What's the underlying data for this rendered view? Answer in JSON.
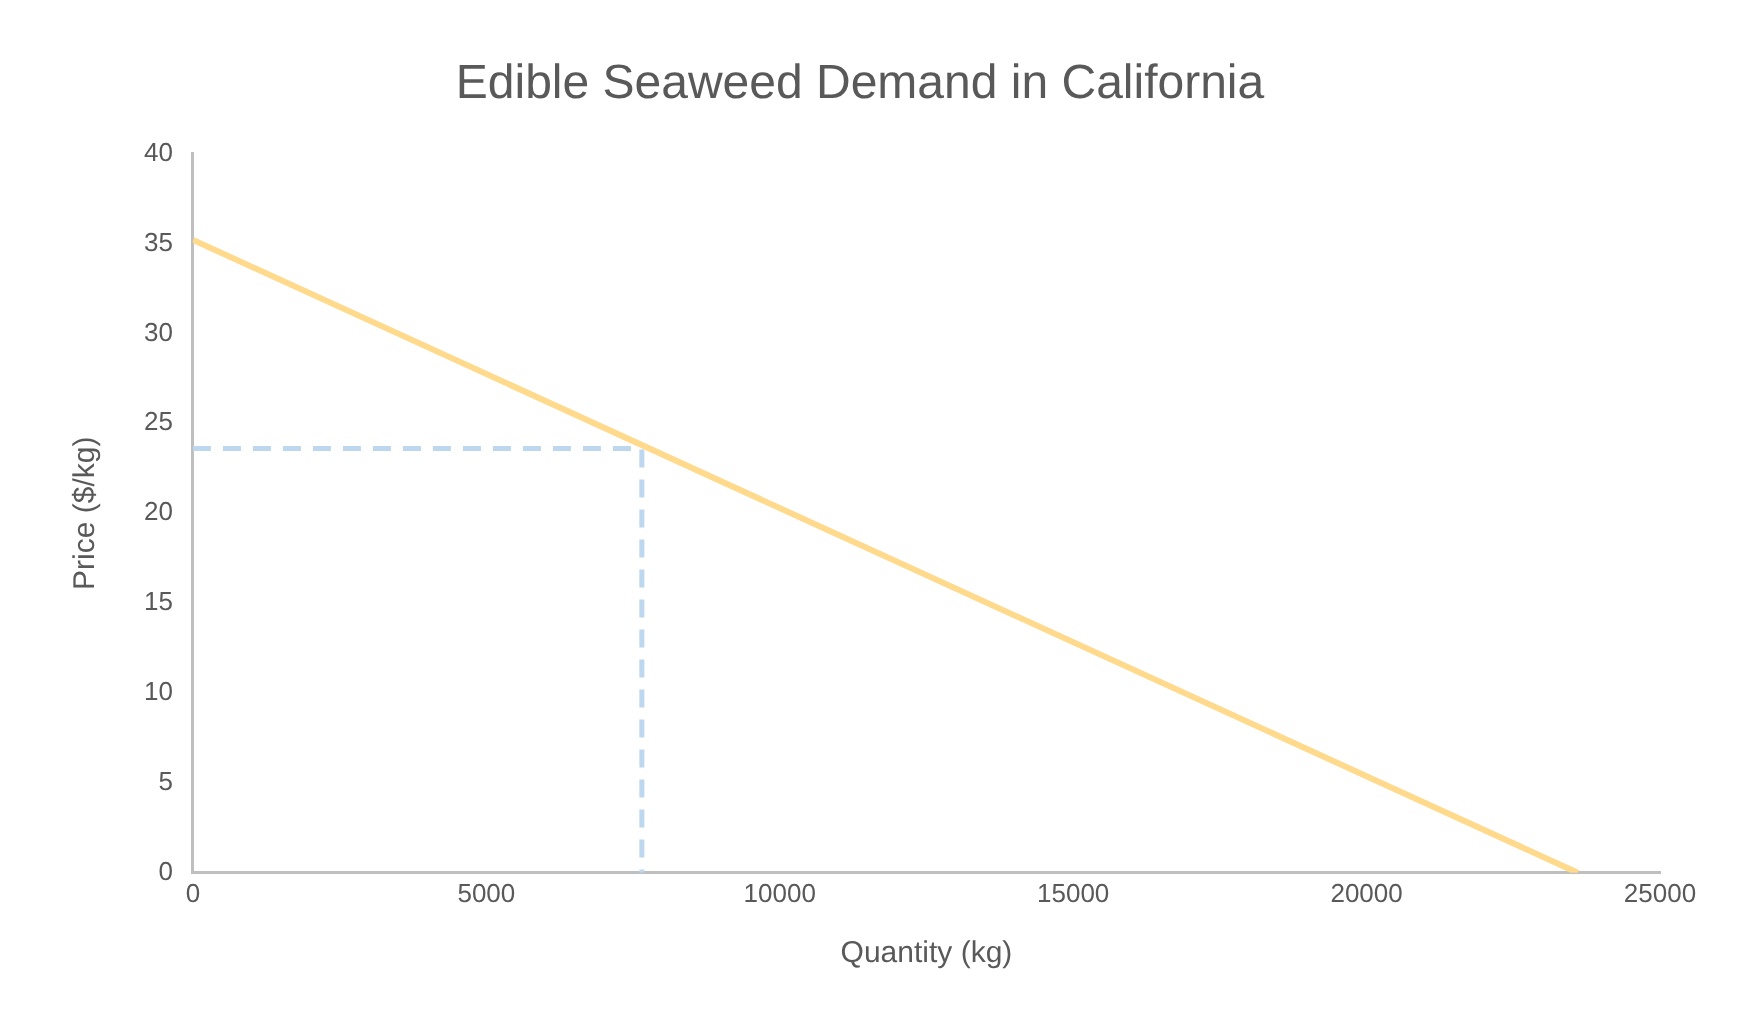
{
  "chart_data": {
    "type": "line",
    "title": "Edible Seaweed Demand in California",
    "xlabel": "Quantity (kg)",
    "ylabel": "Price ($/kg)",
    "xlim": [
      0,
      25000
    ],
    "xticks": [
      0,
      5000,
      10000,
      15000,
      20000,
      25000
    ],
    "ylim": [
      0,
      40
    ],
    "yticks": [
      0,
      5,
      10,
      15,
      20,
      25,
      30,
      35,
      40
    ],
    "grid": false,
    "legend": false,
    "marker": "none",
    "series": [
      {
        "color": "#ffd98c",
        "line_style": "solid",
        "x": [
          0,
          23600
        ],
        "values": [
          35.2,
          0
        ]
      },
      {
        "color": "#bdd7ee",
        "line_style": "dashed",
        "x": [
          0,
          7650,
          7650
        ],
        "values": [
          23.6,
          23.6,
          0
        ]
      }
    ]
  }
}
